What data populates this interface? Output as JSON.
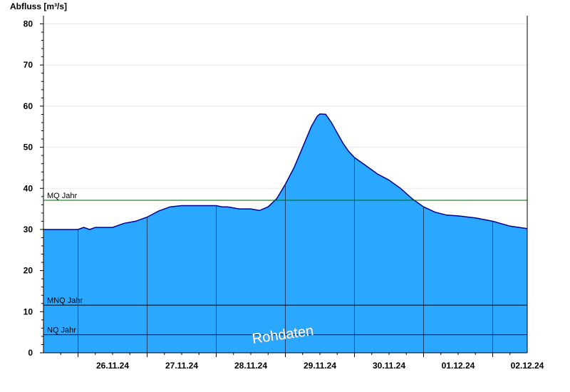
{
  "chart_data": {
    "type": "area",
    "title": "",
    "ylabel": "Abfluss [m³/s]",
    "xlabel": "",
    "ylim": [
      0,
      82
    ],
    "y_ticks": [
      0,
      10,
      20,
      30,
      40,
      50,
      60,
      70,
      80
    ],
    "x_range": [
      "25.11.24 12:00",
      "02.12.24 12:00"
    ],
    "x_tick_labels": [
      "26.11.24",
      "27.11.24",
      "28.11.24",
      "29.11.24",
      "30.11.24",
      "01.12.24",
      "02.12.24"
    ],
    "grid": true,
    "legend": "none",
    "series": [
      {
        "fill_color": "#2aa8ff",
        "line_color": "#00008b",
        "points": [
          [
            "25.11.24 12:00",
            30.0
          ],
          [
            "26.11.24 00:00",
            30.0
          ],
          [
            "26.11.24 02:00",
            30.5
          ],
          [
            "26.11.24 04:00",
            30.0
          ],
          [
            "26.11.24 06:00",
            30.5
          ],
          [
            "26.11.24 12:00",
            30.5
          ],
          [
            "26.11.24 16:00",
            31.5
          ],
          [
            "26.11.24 20:00",
            32.0
          ],
          [
            "27.11.24 00:00",
            33.0
          ],
          [
            "27.11.24 04:00",
            34.5
          ],
          [
            "27.11.24 08:00",
            35.5
          ],
          [
            "27.11.24 12:00",
            35.8
          ],
          [
            "27.11.24 18:00",
            35.8
          ],
          [
            "28.11.24 00:00",
            35.8
          ],
          [
            "28.11.24 02:00",
            35.5
          ],
          [
            "28.11.24 04:00",
            35.5
          ],
          [
            "28.11.24 08:00",
            35.0
          ],
          [
            "28.11.24 12:00",
            35.0
          ],
          [
            "28.11.24 15:00",
            34.6
          ],
          [
            "28.11.24 18:00",
            35.5
          ],
          [
            "28.11.24 21:00",
            37.5
          ],
          [
            "29.11.24 00:00",
            41.0
          ],
          [
            "29.11.24 03:00",
            45.0
          ],
          [
            "29.11.24 06:00",
            50.0
          ],
          [
            "29.11.24 09:00",
            55.0
          ],
          [
            "29.11.24 11:00",
            57.5
          ],
          [
            "29.11.24 12:00",
            58.1
          ],
          [
            "29.11.24 14:00",
            58.0
          ],
          [
            "29.11.24 16:00",
            56.0
          ],
          [
            "29.11.24 18:00",
            53.5
          ],
          [
            "29.11.24 20:00",
            51.0
          ],
          [
            "29.11.24 22:00",
            49.0
          ],
          [
            "30.11.24 00:00",
            47.5
          ],
          [
            "30.11.24 04:00",
            45.5
          ],
          [
            "30.11.24 08:00",
            43.5
          ],
          [
            "30.11.24 12:00",
            42.0
          ],
          [
            "30.11.24 16:00",
            40.0
          ],
          [
            "30.11.24 20:00",
            37.5
          ],
          [
            "01.12.24 00:00",
            35.5
          ],
          [
            "01.12.24 04:00",
            34.2
          ],
          [
            "01.12.24 08:00",
            33.5
          ],
          [
            "01.12.24 12:00",
            33.3
          ],
          [
            "01.12.24 18:00",
            32.8
          ],
          [
            "02.12.24 00:00",
            32.0
          ],
          [
            "02.12.24 06:00",
            30.8
          ],
          [
            "02.12.24 12:00",
            30.2
          ]
        ]
      }
    ],
    "reference_lines": [
      {
        "label": "MQ Jahr",
        "value": 37.1,
        "color": "#006400"
      },
      {
        "label": "MNQ Jahr",
        "value": 11.6,
        "color": "#000000"
      },
      {
        "label": "NQ Jahr",
        "value": 4.4,
        "color": "#000000"
      }
    ],
    "watermark": "Rohdaten"
  }
}
